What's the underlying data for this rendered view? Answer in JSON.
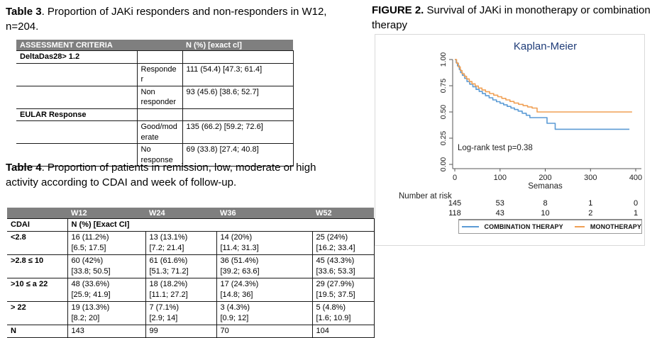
{
  "table3": {
    "caption": {
      "label": "Table 3",
      "text": ". Proportion of JAKi responders and non-responders in W12, n=204."
    },
    "header": {
      "col1": "ASSESSMENT CRITERIA",
      "col2": "N (%) [exact cl]"
    },
    "rows": [
      [
        "DeltaDas28> 1.2",
        "",
        ""
      ],
      [
        "",
        "Responder",
        "111 (54.4) [47.3; 61.4]"
      ],
      [
        "",
        "Non responder",
        "93 (45.6) [38.6; 52.7]"
      ],
      [
        "EULAR Response",
        "",
        ""
      ],
      [
        "",
        "Good/moderate",
        "135 (66.2) [59.2; 72.6]"
      ],
      [
        "",
        "No response",
        "69 (33.8) [27.4; 40.8]"
      ]
    ]
  },
  "table4": {
    "caption": {
      "label": "Table 4",
      "text": ". Proportion of patients in remission, low, moderate or high activity according to CDAI and week of follow-up."
    },
    "week_headers": [
      "W12",
      "W24",
      "W36",
      "W52"
    ],
    "subheader": {
      "label": "CDAI",
      "value": "N (%) [Exact CI]"
    },
    "rows": [
      {
        "label": "<2.8",
        "cells": [
          {
            "v": "16 (11.2%)",
            "ci": "[6.5; 17.5]"
          },
          {
            "v": "13 (13.1%)",
            "ci": "[7.2; 21.4]"
          },
          {
            "v": "14 (20%)",
            "ci": "[11.4; 31.3]"
          },
          {
            "v": "25 (24%)",
            "ci": "[16.2; 33.4]"
          }
        ]
      },
      {
        "label": ">2.8 ≤ 10",
        "cells": [
          {
            "v": "60 (42%)",
            "ci": "[33.8; 50.5]"
          },
          {
            "v": "61 (61.6%)",
            "ci": "[51.3; 71.2]"
          },
          {
            "v": "36 (51.4%)",
            "ci": "[39.2; 63.6]"
          },
          {
            "v": "45 (43.3%)",
            "ci": "[33.6; 53.3]"
          }
        ]
      },
      {
        "label": ">10 ≤ a 22",
        "cells": [
          {
            "v": "48 (33.6%)",
            "ci": "[25.9; 41.9]"
          },
          {
            "v": "18 (18.2%)",
            "ci": "[11.1; 27.2]"
          },
          {
            "v": "17 (24.3%)",
            "ci": "[14.8; 36]"
          },
          {
            "v": "29 (27.9%)",
            "ci": "[19.5; 37.5]"
          }
        ]
      },
      {
        "label": "> 22",
        "cells": [
          {
            "v": "19 (13.3%)",
            "ci": "[8.2; 20]"
          },
          {
            "v": "7 (7.1%)",
            "ci": "[2.9; 14]"
          },
          {
            "v": "3 (4.3%)",
            "ci": "[0.9; 12]"
          },
          {
            "v": "5 (4.8%)",
            "ci": "[1.6; 10.9]"
          }
        ]
      }
    ],
    "totals": {
      "label": "N",
      "values": [
        "143",
        "99",
        "70",
        "104"
      ]
    }
  },
  "figure": {
    "caption": {
      "label": "FIGURE 2.",
      "text": " Survival of JAKi in monotherapy or combination therapy"
    }
  },
  "chart_data": {
    "type": "line",
    "subtype": "kaplan-meier-step",
    "title": "Kaplan-Meier",
    "title_color": "#1f3c78",
    "xlabel": "Semanas",
    "ylabel": "",
    "xlim": [
      0,
      420
    ],
    "ylim": [
      0,
      1.0
    ],
    "grid": false,
    "legend_position": "bottom",
    "annotation": "Log-rank test p=0.38",
    "xticks": [
      0,
      100,
      200,
      300,
      400
    ],
    "yticks": [
      {
        "v": 1.0,
        "label": "1.00"
      },
      {
        "v": 0.75,
        "label": "0.75"
      },
      {
        "v": 0.5,
        "label": "0.50"
      },
      {
        "v": 0.25,
        "label": "0.25"
      },
      {
        "v": 0.0,
        "label": "0.00"
      }
    ],
    "series": [
      {
        "name": "COMBINATION  THERAPY",
        "color": "#5b9bd5",
        "points": [
          [
            0,
            1.0
          ],
          [
            3,
            0.97
          ],
          [
            6,
            0.94
          ],
          [
            10,
            0.905
          ],
          [
            13,
            0.875
          ],
          [
            17,
            0.85
          ],
          [
            22,
            0.82
          ],
          [
            27,
            0.79
          ],
          [
            33,
            0.765
          ],
          [
            40,
            0.74
          ],
          [
            47,
            0.715
          ],
          [
            54,
            0.695
          ],
          [
            61,
            0.675
          ],
          [
            68,
            0.655
          ],
          [
            76,
            0.635
          ],
          [
            84,
            0.615
          ],
          [
            92,
            0.598
          ],
          [
            100,
            0.583
          ],
          [
            108,
            0.568
          ],
          [
            116,
            0.553
          ],
          [
            124,
            0.538
          ],
          [
            132,
            0.523
          ],
          [
            140,
            0.508
          ],
          [
            149,
            0.488
          ],
          [
            158,
            0.468
          ],
          [
            166,
            0.446
          ],
          [
            204,
            0.392
          ],
          [
            222,
            0.335
          ],
          [
            386,
            0.335
          ]
        ]
      },
      {
        "name": "MONOTHERAPY",
        "color": "#f0a055",
        "points": [
          [
            0,
            1.0
          ],
          [
            4,
            0.965
          ],
          [
            8,
            0.93
          ],
          [
            12,
            0.895
          ],
          [
            16,
            0.865
          ],
          [
            21,
            0.84
          ],
          [
            26,
            0.815
          ],
          [
            32,
            0.79
          ],
          [
            38,
            0.768
          ],
          [
            45,
            0.747
          ],
          [
            52,
            0.728
          ],
          [
            60,
            0.71
          ],
          [
            68,
            0.693
          ],
          [
            77,
            0.676
          ],
          [
            86,
            0.66
          ],
          [
            95,
            0.645
          ],
          [
            104,
            0.63
          ],
          [
            113,
            0.615
          ],
          [
            122,
            0.6
          ],
          [
            131,
            0.585
          ],
          [
            141,
            0.572
          ],
          [
            151,
            0.56
          ],
          [
            161,
            0.548
          ],
          [
            171,
            0.537
          ],
          [
            182,
            0.5
          ],
          [
            392,
            0.5
          ]
        ]
      }
    ],
    "number_at_risk": {
      "label": "Number at risk",
      "rows": [
        [
          "145",
          "53",
          "8",
          "1",
          "0"
        ],
        [
          "118",
          "43",
          "10",
          "2",
          "1"
        ]
      ]
    }
  }
}
